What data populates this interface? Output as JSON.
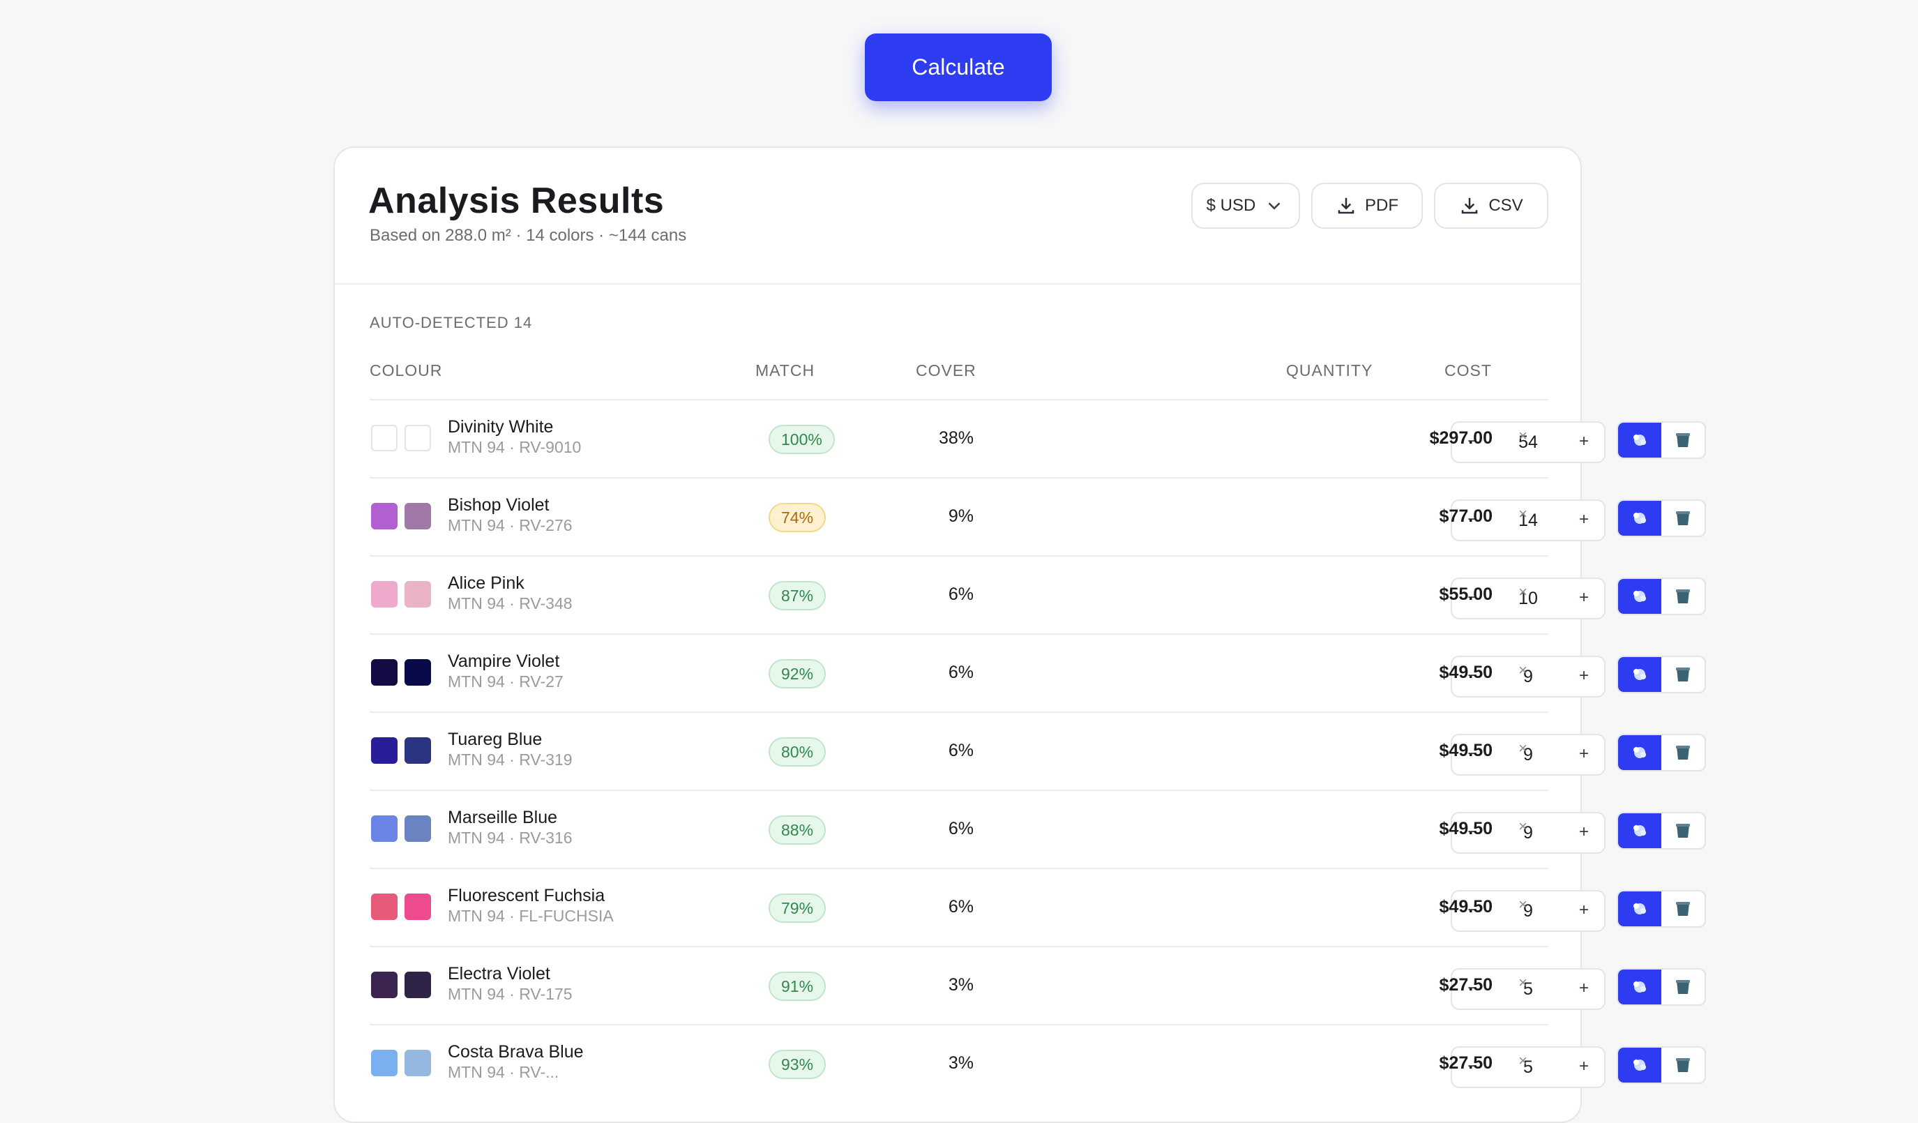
{
  "calculate_label": "Calculate",
  "results": {
    "title": "Analysis Results",
    "subtitle": "Based on 288.0 m² · 14 colors · ~144 cans",
    "currency_label": "$ USD",
    "pdf_label": "PDF",
    "csv_label": "CSV",
    "section_label": "AUTO-DETECTED 14",
    "columns": {
      "colour": "COLOUR",
      "match": "MATCH",
      "cover": "COVER",
      "quantity": "QUANTITY",
      "cost": "COST"
    },
    "rows": [
      {
        "name": "Divinity White",
        "code": "MTN 94 · RV-9010",
        "match": "100%",
        "match_level": "good",
        "cover": "38%",
        "qty": "54",
        "cost": "$297.00",
        "swatch_target": "#ffffff",
        "swatch_paint": "#ffffff"
      },
      {
        "name": "Bishop Violet",
        "code": "MTN 94 · RV-276",
        "match": "74%",
        "match_level": "warn",
        "cover": "9%",
        "qty": "14",
        "cost": "$77.00",
        "swatch_target": "#b15fd1",
        "swatch_paint": "#a079a8"
      },
      {
        "name": "Alice Pink",
        "code": "MTN 94 · RV-348",
        "match": "87%",
        "match_level": "good",
        "cover": "6%",
        "qty": "10",
        "cost": "$55.00",
        "swatch_target": "#efa9cd",
        "swatch_paint": "#eab3c8"
      },
      {
        "name": "Vampire Violet",
        "code": "MTN 94 · RV-27",
        "match": "92%",
        "match_level": "good",
        "cover": "6%",
        "qty": "9",
        "cost": "$49.50",
        "swatch_target": "#140b45",
        "swatch_paint": "#080a4a"
      },
      {
        "name": "Tuareg Blue",
        "code": "MTN 94 · RV-319",
        "match": "80%",
        "match_level": "good",
        "cover": "6%",
        "qty": "9",
        "cost": "$49.50",
        "swatch_target": "#2a1d9a",
        "swatch_paint": "#2b3480"
      },
      {
        "name": "Marseille Blue",
        "code": "MTN 94 · RV-316",
        "match": "88%",
        "match_level": "good",
        "cover": "6%",
        "qty": "9",
        "cost": "$49.50",
        "swatch_target": "#6b85e6",
        "swatch_paint": "#6a84c2"
      },
      {
        "name": "Fluorescent Fuchsia",
        "code": "MTN 94 · FL-FUCHSIA",
        "match": "79%",
        "match_level": "good",
        "cover": "6%",
        "qty": "9",
        "cost": "$49.50",
        "swatch_target": "#e85a7a",
        "swatch_paint": "#ee4a8f"
      },
      {
        "name": "Electra Violet",
        "code": "MTN 94 · RV-175",
        "match": "91%",
        "match_level": "good",
        "cover": "3%",
        "qty": "5",
        "cost": "$27.50",
        "swatch_target": "#3b2450",
        "swatch_paint": "#2f2347"
      },
      {
        "name": "Costa Brava Blue",
        "code": "MTN 94 · RV-...",
        "match": "93%",
        "match_level": "good",
        "cover": "3%",
        "qty": "5",
        "cost": "$27.50",
        "swatch_target": "#7ab0f0",
        "swatch_paint": "#94b8e0"
      }
    ]
  }
}
